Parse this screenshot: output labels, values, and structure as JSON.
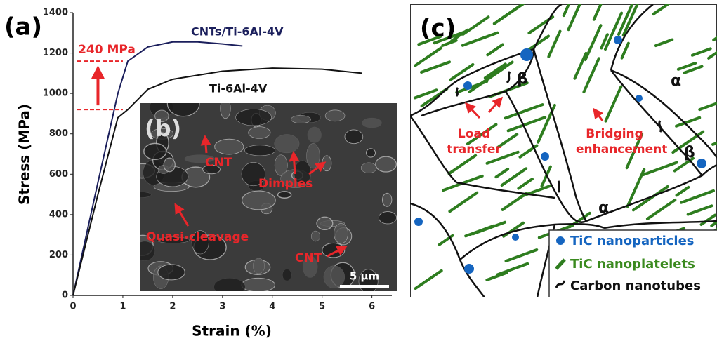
{
  "chart_data": {
    "type": "line",
    "panel_label": "(a)",
    "x_label": "Strain (%)",
    "y_label": "Stress (MPa)",
    "xlim": [
      0,
      6.4
    ],
    "xticks": [
      0,
      1,
      2,
      3,
      4,
      5,
      6
    ],
    "ylim": [
      0,
      1400
    ],
    "yticks": [
      0,
      200,
      400,
      600,
      800,
      1000,
      1200,
      1400
    ],
    "series": [
      {
        "name": "CNTs/Ti-6Al-4V",
        "color": "#1b1f5c",
        "x": [
          0,
          0.5,
          0.9,
          1.1,
          1.5,
          2,
          2.5,
          3,
          3.4
        ],
        "values": [
          0,
          560,
          1000,
          1160,
          1230,
          1255,
          1255,
          1245,
          1235
        ]
      },
      {
        "name": "Ti-6Al-4V",
        "color": "#111111",
        "x": [
          0,
          0.5,
          0.9,
          1.1,
          1.5,
          2,
          3,
          4,
          5,
          5.8
        ],
        "values": [
          0,
          500,
          880,
          920,
          1020,
          1070,
          1110,
          1125,
          1120,
          1100
        ]
      }
    ],
    "annotation": {
      "text": "240 MPa",
      "from": 920,
      "to": 1160,
      "color": "#e8262a"
    }
  },
  "inset": {
    "label": "(b)",
    "texts": [
      "CNT",
      "Dimples",
      "Quasi-cleavage",
      "CNT"
    ],
    "scale_bar": "5 μm"
  },
  "schematic": {
    "label": "(c)",
    "phases": [
      "β",
      "α",
      "β",
      "α"
    ],
    "mechanisms": [
      "Load transfer",
      "Bridging enhancement"
    ],
    "legend": [
      "TiC nanoparticles",
      "TiC nanoplatelets",
      "Carbon nanotubes"
    ]
  }
}
